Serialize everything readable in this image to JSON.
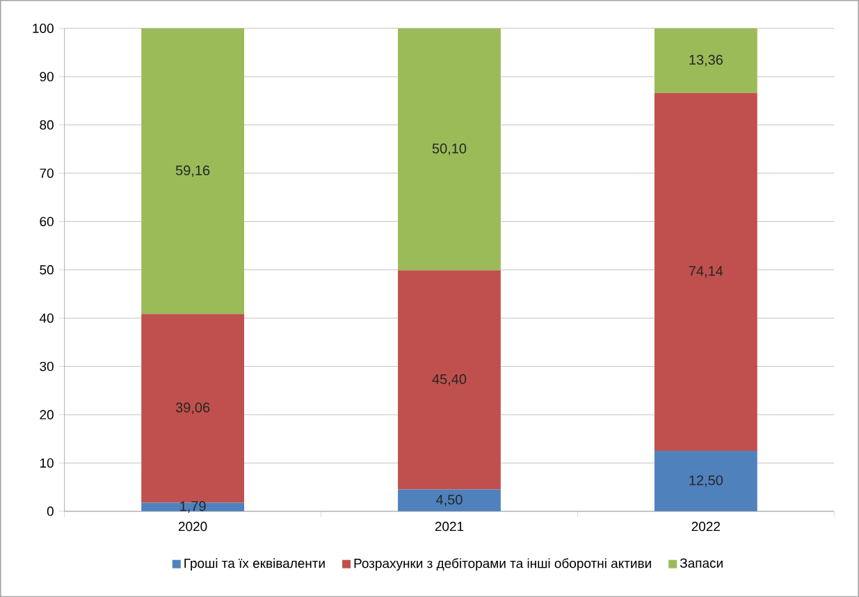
{
  "chart_data": {
    "type": "bar",
    "stacked": true,
    "categories": [
      "2020",
      "2021",
      "2022"
    ],
    "series": [
      {
        "name": "Гроші та їх еквіваленти",
        "color": "#4f81bd",
        "values": [
          1.79,
          4.5,
          12.5
        ],
        "value_labels": [
          "1,79",
          "4,50",
          "12,50"
        ]
      },
      {
        "name": "Розрахунки з дебіторами та інші оборотні активи",
        "color": "#c0504d",
        "values": [
          39.06,
          45.4,
          74.14
        ],
        "value_labels": [
          "39,06",
          "45,40",
          "74,14"
        ]
      },
      {
        "name": "Запаси",
        "color": "#9bbb59",
        "values": [
          59.16,
          50.1,
          13.36
        ],
        "value_labels": [
          "59,16",
          "50,10",
          "13,36"
        ]
      }
    ],
    "ylim": [
      0,
      100
    ],
    "yticks": [
      0,
      10,
      20,
      30,
      40,
      50,
      60,
      70,
      80,
      90,
      100
    ],
    "grid": "y",
    "legend": "bottom"
  }
}
